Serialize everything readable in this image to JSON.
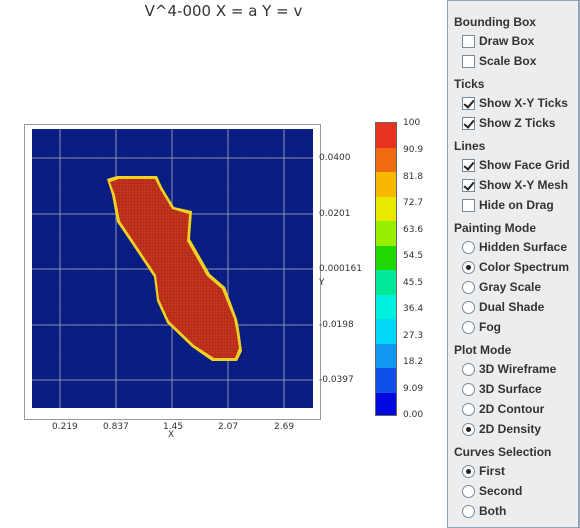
{
  "plot": {
    "title": "V^4-000 X = a Y = v",
    "x_axis": {
      "label": "X",
      "ticks": [
        "0.219",
        "0.837",
        "1.45",
        "2.07",
        "2.69"
      ]
    },
    "y_axis": {
      "label": "Y",
      "ticks": [
        "0.0400",
        "0.0201",
        "0.000161",
        "-0.0198",
        "-0.0397"
      ]
    },
    "colors": {
      "background": "#0a1f8a",
      "fill": "#c8331e",
      "edge": "#f0d020",
      "grid": "#8a92b0"
    }
  },
  "scale": {
    "labels": [
      "100",
      "90.9",
      "81.8",
      "72.7",
      "63.6",
      "54.5",
      "45.5",
      "36.4",
      "27.3",
      "18.2",
      "9.09",
      "0.00"
    ],
    "colors": [
      "#e8321e",
      "#f06a10",
      "#f8b800",
      "#e8e800",
      "#98f000",
      "#20d800",
      "#00e898",
      "#00f0e0",
      "#00d8f8",
      "#1098f0",
      "#1050e8",
      "#0008e0"
    ]
  },
  "panel": {
    "bounding_box": {
      "title": "Bounding Box",
      "items": [
        {
          "label": "Draw Box",
          "checked": false
        },
        {
          "label": "Scale Box",
          "checked": false
        }
      ]
    },
    "ticks": {
      "title": "Ticks",
      "items": [
        {
          "label": "Show X-Y Ticks",
          "checked": true
        },
        {
          "label": "Show Z Ticks",
          "checked": true
        }
      ]
    },
    "lines": {
      "title": "Lines",
      "items": [
        {
          "label": "Show Face Grid",
          "checked": true
        },
        {
          "label": "Show X-Y Mesh",
          "checked": true
        },
        {
          "label": "Hide on Drag",
          "checked": false
        }
      ]
    },
    "painting_mode": {
      "title": "Painting Mode",
      "items": [
        {
          "label": "Hidden Surface",
          "checked": false
        },
        {
          "label": "Color Spectrum",
          "checked": true
        },
        {
          "label": "Gray Scale",
          "checked": false
        },
        {
          "label": "Dual Shade",
          "checked": false
        },
        {
          "label": "Fog",
          "checked": false
        }
      ]
    },
    "plot_mode": {
      "title": "Plot Mode",
      "items": [
        {
          "label": "3D Wireframe",
          "checked": false
        },
        {
          "label": "3D Surface",
          "checked": false
        },
        {
          "label": "2D Contour",
          "checked": false
        },
        {
          "label": "2D Density",
          "checked": true
        }
      ]
    },
    "curves_selection": {
      "title": "Curves Selection",
      "items": [
        {
          "label": "First",
          "checked": true
        },
        {
          "label": "Second",
          "checked": false
        },
        {
          "label": "Both",
          "checked": false
        }
      ]
    }
  }
}
